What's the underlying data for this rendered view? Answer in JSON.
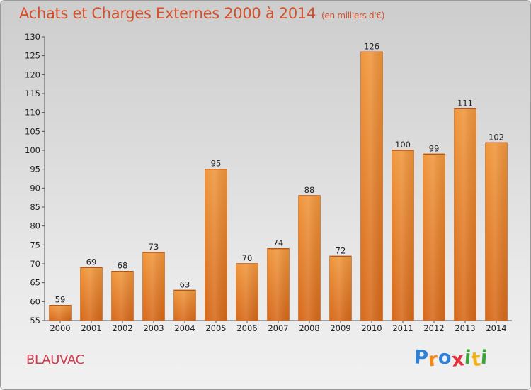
{
  "chart_data": {
    "type": "bar",
    "title": "Achats et Charges Externes 2000 à 2014",
    "subtitle": "(en milliers d'€)",
    "categories": [
      "2000",
      "2001",
      "2002",
      "2003",
      "2004",
      "2005",
      "2006",
      "2007",
      "2008",
      "2009",
      "2010",
      "2011",
      "2012",
      "2013",
      "2014"
    ],
    "values": [
      59,
      69,
      68,
      73,
      63,
      95,
      70,
      74,
      88,
      72,
      126,
      100,
      99,
      111,
      102
    ],
    "ylim": [
      55,
      130
    ],
    "yticks": [
      55,
      60,
      65,
      70,
      75,
      80,
      85,
      90,
      95,
      100,
      105,
      110,
      115,
      120,
      125,
      130
    ],
    "bar_color": "#f0963c",
    "bar_color_dark": "#d7691a",
    "grid": false,
    "legend": "none"
  },
  "commune": "BLAUVAC",
  "logo": {
    "letters": [
      "P",
      "r",
      "o",
      "x",
      "i",
      "t",
      "i"
    ],
    "colors": [
      "#2e7fd6",
      "#f08a1a",
      "#2e7fd6",
      "#e8303c",
      "#3aa33a",
      "#f0b21a",
      "#3aa33a"
    ]
  }
}
